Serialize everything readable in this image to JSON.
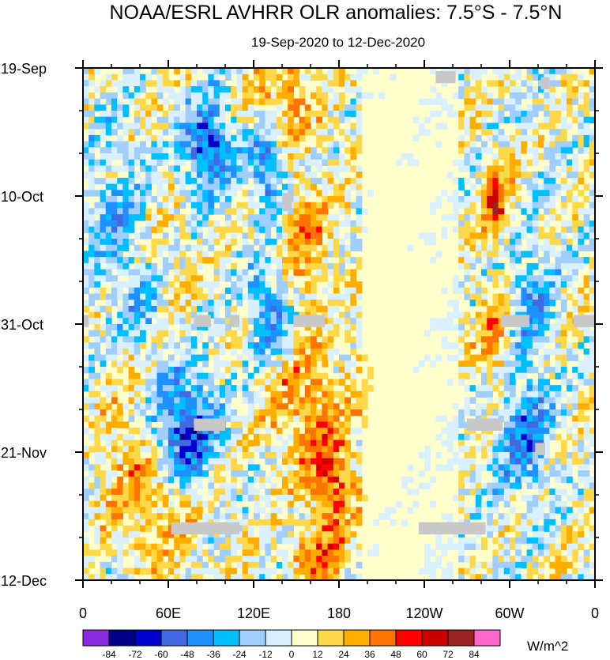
{
  "chart_data": {
    "type": "heatmap",
    "title": "NOAA/ESRL AVHRR OLR anomalies: 7.5°S - 7.5°N",
    "subtitle": "19-Sep-2020 to 12-Dec-2020",
    "x_ticks": [
      {
        "lon": 0,
        "label": "0"
      },
      {
        "lon": 60,
        "label": "60E"
      },
      {
        "lon": 120,
        "label": "120E"
      },
      {
        "lon": 180,
        "label": "180"
      },
      {
        "lon": 240,
        "label": "120W"
      },
      {
        "lon": 300,
        "label": "60W"
      },
      {
        "lon": 360,
        "label": "0"
      }
    ],
    "xlim": [
      0,
      360
    ],
    "y_ticks": [
      {
        "day": 0,
        "label": "19-Sep"
      },
      {
        "day": 21,
        "label": "10-Oct"
      },
      {
        "day": 42,
        "label": "31-Oct"
      },
      {
        "day": 63,
        "label": "21-Nov"
      },
      {
        "day": 84,
        "label": "12-Dec"
      }
    ],
    "ylim_days": [
      0,
      84
    ],
    "colorbar": {
      "units": "W/m^2",
      "labels": [
        "-84",
        "-72",
        "-60",
        "-48",
        "-36",
        "-24",
        "-12",
        "0",
        "12",
        "24",
        "36",
        "48",
        "60",
        "72",
        "84"
      ],
      "colors": [
        "#8a2be2",
        "#00008b",
        "#0000cd",
        "#4169e1",
        "#1e90ff",
        "#00bfff",
        "#a0cfff",
        "#d8f0ff",
        "#ffffcc",
        "#ffd84a",
        "#ffae00",
        "#ff7400",
        "#ff0000",
        "#cc0000",
        "#992222",
        "#ff66cc"
      ]
    },
    "pattern": [
      {
        "lon": 88,
        "day": 13,
        "value": -55,
        "lon_w": 18,
        "day_w": 8
      },
      {
        "lon": 130,
        "day": 16,
        "value": -50,
        "lon_w": 12,
        "day_w": 8
      },
      {
        "lon": 72,
        "day": 60,
        "value": -65,
        "lon_w": 22,
        "day_w": 10
      },
      {
        "lon": 130,
        "day": 40,
        "value": -42,
        "lon_w": 14,
        "day_w": 8
      },
      {
        "lon": 50,
        "day": 40,
        "value": -35,
        "lon_w": 20,
        "day_w": 8
      },
      {
        "lon": 310,
        "day": 60,
        "value": -45,
        "lon_w": 18,
        "day_w": 10
      },
      {
        "lon": 315,
        "day": 38,
        "value": -30,
        "lon_w": 15,
        "day_w": 10
      },
      {
        "lon": 20,
        "day": 25,
        "value": -25,
        "lon_w": 20,
        "day_w": 14
      },
      {
        "lon": 155,
        "day": 28,
        "value": 30,
        "lon_w": 18,
        "day_w": 10
      },
      {
        "lon": 160,
        "day": 56,
        "value": 35,
        "lon_w": 30,
        "day_w": 10
      },
      {
        "lon": 175,
        "day": 68,
        "value": 45,
        "lon_w": 14,
        "day_w": 6
      },
      {
        "lon": 165,
        "day": 80,
        "value": 40,
        "lon_w": 20,
        "day_w": 5
      },
      {
        "lon": 140,
        "day": 5,
        "value": 32,
        "lon_w": 22,
        "day_w": 8
      },
      {
        "lon": 290,
        "day": 22,
        "value": 50,
        "lon_w": 10,
        "day_w": 6
      },
      {
        "lon": 290,
        "day": 45,
        "value": 35,
        "lon_w": 12,
        "day_w": 8
      },
      {
        "lon": 65,
        "day": 72,
        "value": 28,
        "lon_w": 25,
        "day_w": 10
      },
      {
        "lon": 60,
        "day": 38,
        "value": 28,
        "lon_w": 15,
        "day_w": 10
      },
      {
        "lon": 30,
        "day": 65,
        "value": 22,
        "lon_w": 20,
        "day_w": 15
      },
      {
        "lon": 215,
        "day": 40,
        "value": 6,
        "lon_w": 35,
        "day_w": 60
      }
    ]
  }
}
